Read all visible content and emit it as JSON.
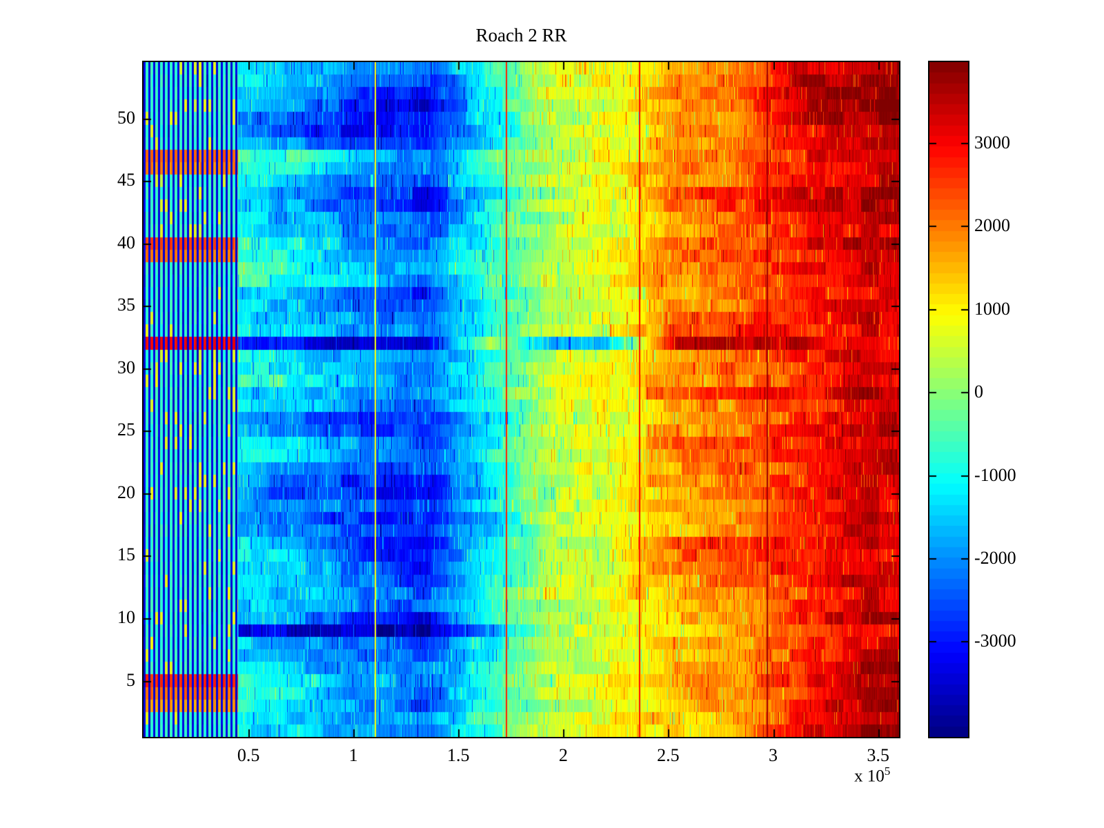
{
  "title": "Roach 2 RR",
  "axes": {
    "x_tick_labels": [
      "0.5",
      "1",
      "1.5",
      "2",
      "2.5",
      "3",
      "3.5"
    ],
    "x_tick_values": [
      50000,
      100000,
      150000,
      200000,
      250000,
      300000,
      350000
    ],
    "x_multiplier_base": "x 10",
    "x_multiplier_exponent": "5",
    "y_tick_labels": [
      "5",
      "10",
      "15",
      "20",
      "25",
      "30",
      "35",
      "40",
      "45",
      "50"
    ],
    "y_tick_values": [
      5,
      10,
      15,
      20,
      25,
      30,
      35,
      40,
      45,
      50
    ],
    "x_range": [
      0,
      360000
    ],
    "y_range": [
      0.5,
      54.5
    ]
  },
  "colorbar": {
    "tick_labels": [
      "3000",
      "2000",
      "1000",
      "0",
      "-1000",
      "-2000",
      "-3000"
    ],
    "tick_values": [
      3000,
      2000,
      1000,
      0,
      -1000,
      -2000,
      -3000
    ],
    "clim": [
      -4150,
      3970
    ],
    "colormap": "jet",
    "bands": 64
  },
  "chart_data": {
    "type": "heatmap",
    "title": "Roach 2 RR",
    "colormap": "jet",
    "clim": [
      -4150,
      3970
    ],
    "x_range": [
      0,
      360000
    ],
    "rows": 54,
    "col_edges": [
      0,
      30000,
      60000,
      90000,
      120000,
      150000,
      180000,
      210000,
      240000,
      270000,
      300000,
      330000,
      360000
    ],
    "matrix_rows_bottom_to_top": [
      [
        -800,
        -1100,
        -1500,
        -1900,
        -2200,
        -600,
        400,
        800,
        1300,
        1600,
        3300,
        3750
      ],
      [
        -600,
        -1000,
        -1400,
        -1800,
        -2100,
        -500,
        500,
        900,
        1400,
        1700,
        3000,
        3600
      ],
      [
        500,
        -900,
        -1300,
        -2000,
        -2600,
        -700,
        300,
        700,
        1500,
        1800,
        2600,
        3750
      ],
      [
        900,
        -800,
        -1200,
        -1900,
        -2400,
        -600,
        400,
        800,
        1600,
        1900,
        2500,
        3700
      ],
      [
        1400,
        -700,
        -1100,
        -1700,
        -2200,
        -500,
        500,
        900,
        1700,
        2000,
        2700,
        3800
      ],
      [
        -900,
        -1200,
        -1600,
        -2000,
        -2300,
        -800,
        300,
        700,
        1500,
        1800,
        2800,
        3700
      ],
      [
        -1000,
        -1300,
        -1700,
        -2100,
        -2400,
        -900,
        200,
        600,
        1400,
        1700,
        2600,
        3300
      ],
      [
        -1100,
        -1400,
        -1800,
        -2200,
        -2500,
        -1000,
        300,
        700,
        1500,
        1800,
        2500,
        3200
      ],
      [
        -3000,
        -3300,
        -3600,
        -3700,
        -3800,
        -1800,
        400,
        800,
        1200,
        1500,
        2400,
        3100
      ],
      [
        -1200,
        -1500,
        -1900,
        -2800,
        -3200,
        -1100,
        300,
        700,
        1400,
        1700,
        2900,
        3500
      ],
      [
        -1000,
        -1300,
        -1700,
        -2200,
        -2500,
        -900,
        400,
        800,
        1500,
        1800,
        2600,
        3200
      ],
      [
        -900,
        -1200,
        -1600,
        -2100,
        -2400,
        -800,
        500,
        900,
        1600,
        1900,
        2500,
        3100
      ],
      [
        -1100,
        -900,
        -1300,
        -2200,
        -2800,
        -1000,
        400,
        800,
        1700,
        2000,
        3000,
        3400
      ],
      [
        -1200,
        -1000,
        -1400,
        -2400,
        -3000,
        -1100,
        300,
        700,
        2100,
        2400,
        2800,
        3200
      ],
      [
        -800,
        -1100,
        -1500,
        -2500,
        -3100,
        -1200,
        400,
        800,
        2200,
        2500,
        2700,
        3100
      ],
      [
        -900,
        -1200,
        -1600,
        -2600,
        -3200,
        -1300,
        300,
        700,
        2300,
        2600,
        2800,
        3200
      ],
      [
        -1500,
        -1800,
        -2200,
        -2600,
        -2900,
        -1500,
        200,
        600,
        1500,
        1800,
        2700,
        3300
      ],
      [
        -1600,
        -1900,
        -2300,
        -2700,
        -3000,
        -1600,
        300,
        700,
        1600,
        1900,
        2800,
        3400
      ],
      [
        -1300,
        -1600,
        -2000,
        -2400,
        -2700,
        -1200,
        400,
        800,
        1500,
        1800,
        2600,
        3200
      ],
      [
        -1400,
        -2000,
        -2600,
        -2900,
        -3100,
        -1300,
        300,
        700,
        1600,
        1900,
        2700,
        3300
      ],
      [
        -1300,
        -1900,
        -2500,
        -2800,
        -3000,
        -1200,
        400,
        800,
        1700,
        2000,
        2800,
        3400
      ],
      [
        -1200,
        -1500,
        -1900,
        -2300,
        -2600,
        -1100,
        500,
        900,
        1800,
        2100,
        2700,
        3300
      ],
      [
        -1000,
        -800,
        -1200,
        -2000,
        -2400,
        -900,
        400,
        800,
        2200,
        2500,
        2600,
        3200
      ],
      [
        -1100,
        -900,
        -1300,
        -2100,
        -2500,
        -1000,
        300,
        700,
        2300,
        2600,
        2700,
        3300
      ],
      [
        -1300,
        -1700,
        -2200,
        -2600,
        -2800,
        -1200,
        400,
        800,
        1600,
        1900,
        2800,
        3400
      ],
      [
        -1400,
        -1800,
        -2300,
        -2700,
        -2900,
        -1300,
        300,
        700,
        1500,
        1800,
        2700,
        3300
      ],
      [
        -1000,
        -1300,
        -1600,
        -2000,
        -2300,
        -900,
        400,
        800,
        1600,
        1900,
        2600,
        3200
      ],
      [
        -900,
        -1200,
        -1500,
        -1900,
        -2200,
        -800,
        500,
        900,
        2400,
        2700,
        2900,
        3700
      ],
      [
        -700,
        -600,
        -1000,
        -1600,
        -2000,
        -700,
        500,
        900,
        1700,
        2000,
        2500,
        3100
      ],
      [
        -800,
        -900,
        -1300,
        -1800,
        -2200,
        -800,
        400,
        800,
        1800,
        2100,
        2600,
        3200
      ],
      [
        -900,
        -1000,
        -1400,
        -1900,
        -2300,
        -900,
        500,
        900,
        1900,
        2200,
        2700,
        3300
      ],
      [
        1800,
        -2600,
        -3200,
        -3500,
        -3600,
        600,
        -1900,
        -1500,
        3500,
        3700,
        3200,
        2800
      ],
      [
        -800,
        -1100,
        -1500,
        -1900,
        -2200,
        -700,
        400,
        800,
        2300,
        2600,
        2700,
        3200
      ],
      [
        -900,
        -1200,
        -1600,
        -2000,
        -2300,
        -800,
        300,
        700,
        2400,
        2700,
        2800,
        3300
      ],
      [
        -1000,
        -1300,
        -1700,
        -2500,
        -2800,
        -900,
        400,
        800,
        1700,
        2000,
        2700,
        3200
      ],
      [
        -1100,
        -1400,
        -1800,
        -2600,
        -2900,
        -1000,
        300,
        700,
        1600,
        1900,
        2600,
        3100
      ],
      [
        -700,
        -500,
        -900,
        -1700,
        -2100,
        -600,
        500,
        900,
        1800,
        2100,
        2700,
        3200
      ],
      [
        -600,
        -400,
        -800,
        -1600,
        -2000,
        -500,
        600,
        1000,
        1900,
        2200,
        2800,
        3300
      ],
      [
        800,
        -700,
        -1100,
        -1900,
        -2300,
        -700,
        500,
        900,
        2000,
        2300,
        2900,
        3400
      ],
      [
        1200,
        -800,
        -1200,
        -2000,
        -2400,
        -800,
        400,
        800,
        2100,
        2400,
        3000,
        3500
      ],
      [
        -900,
        -1200,
        -1600,
        -2100,
        -2400,
        -900,
        400,
        800,
        1700,
        2000,
        2700,
        3200
      ],
      [
        -1000,
        -1300,
        -1700,
        -2200,
        -2500,
        -1000,
        300,
        700,
        1800,
        2100,
        2800,
        3300
      ],
      [
        -1100,
        -1400,
        -1800,
        -2700,
        -3000,
        -1100,
        400,
        800,
        2300,
        2600,
        3200,
        3700
      ],
      [
        -1200,
        -1500,
        -1900,
        -2800,
        -3100,
        -1200,
        300,
        700,
        2400,
        2700,
        3300,
        3750
      ],
      [
        -1000,
        -1100,
        -1500,
        -2200,
        -2500,
        -900,
        400,
        800,
        1800,
        2100,
        2700,
        3200
      ],
      [
        700,
        -400,
        -800,
        -1800,
        -2200,
        -600,
        500,
        900,
        1900,
        2200,
        2800,
        3300
      ],
      [
        900,
        -300,
        -700,
        -1700,
        -2100,
        -500,
        600,
        1000,
        2000,
        2300,
        2900,
        3400
      ],
      [
        -1200,
        -1600,
        -2100,
        -2500,
        -2800,
        -1100,
        400,
        800,
        1700,
        2000,
        2800,
        3300
      ],
      [
        -1400,
        -2200,
        -2800,
        -3100,
        -3300,
        -1300,
        300,
        700,
        1600,
        1900,
        2900,
        3400
      ],
      [
        -1300,
        -1800,
        -2300,
        -2900,
        -3200,
        -1200,
        400,
        800,
        1700,
        2000,
        3400,
        3750
      ],
      [
        -1000,
        -1400,
        -1800,
        -3000,
        -3300,
        -1000,
        300,
        700,
        1800,
        2100,
        3600,
        3800
      ],
      [
        -900,
        -1300,
        -1700,
        -2900,
        -3200,
        -900,
        400,
        800,
        1900,
        2200,
        3600,
        3800
      ],
      [
        -800,
        -1200,
        -1600,
        -2500,
        -2800,
        -800,
        500,
        900,
        1800,
        2100,
        3500,
        3750
      ],
      [
        -700,
        -1000,
        -1400,
        -2000,
        -2300,
        -700,
        600,
        1000,
        1700,
        2000,
        3200,
        3600
      ]
    ],
    "anomalies": {
      "striped_band_x_max": 45000,
      "outlier_row": 32,
      "dark_row": 9,
      "vertical_lines": [
        {
          "x": 110000,
          "value": 900
        },
        {
          "x": 172500,
          "value": 2700
        },
        {
          "x": 236000,
          "value": 2900
        },
        {
          "x": 297000,
          "value": 3700
        }
      ]
    }
  }
}
